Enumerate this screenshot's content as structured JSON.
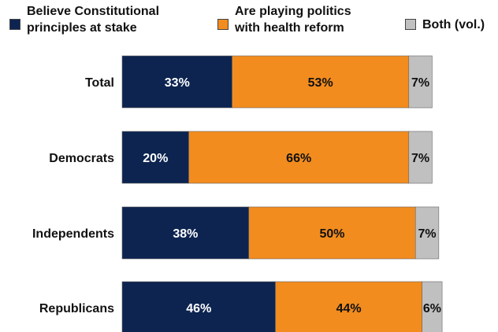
{
  "chart_data": {
    "type": "bar",
    "orientation": "horizontal",
    "stacked": true,
    "title": "",
    "xlabel": "",
    "ylabel": "",
    "categories": [
      "Total",
      "Democrats",
      "Independents",
      "Republicans"
    ],
    "series": [
      {
        "name": "Believe Constitutional principles at stake",
        "values": [
          33,
          20,
          38,
          46
        ],
        "labels": [
          "33%",
          "20%",
          "38%",
          "46%"
        ],
        "color": "#0d2450",
        "label_color": "#ffffff"
      },
      {
        "name": "Are playing politics with health reform",
        "values": [
          53,
          66,
          50,
          44
        ],
        "labels": [
          "53%",
          "66%",
          "50%",
          "44%"
        ],
        "color": "#f28c1e",
        "label_color": "#111111"
      },
      {
        "name": "Both (vol.)",
        "values": [
          7,
          7,
          7,
          6
        ],
        "labels": [
          "7%",
          "7%",
          "7%",
          "6%"
        ],
        "color": "#c0c0c0",
        "label_color": "#111111"
      }
    ],
    "legend_position": "top",
    "grid": false
  },
  "legend": {
    "items": [
      {
        "label": "Believe Constitutional\nprinciples at stake",
        "color": "#0d2450"
      },
      {
        "label": "Are playing politics\nwith health reform",
        "color": "#f28c1e"
      },
      {
        "label": "Both (vol.)",
        "color": "#c0c0c0"
      }
    ]
  }
}
